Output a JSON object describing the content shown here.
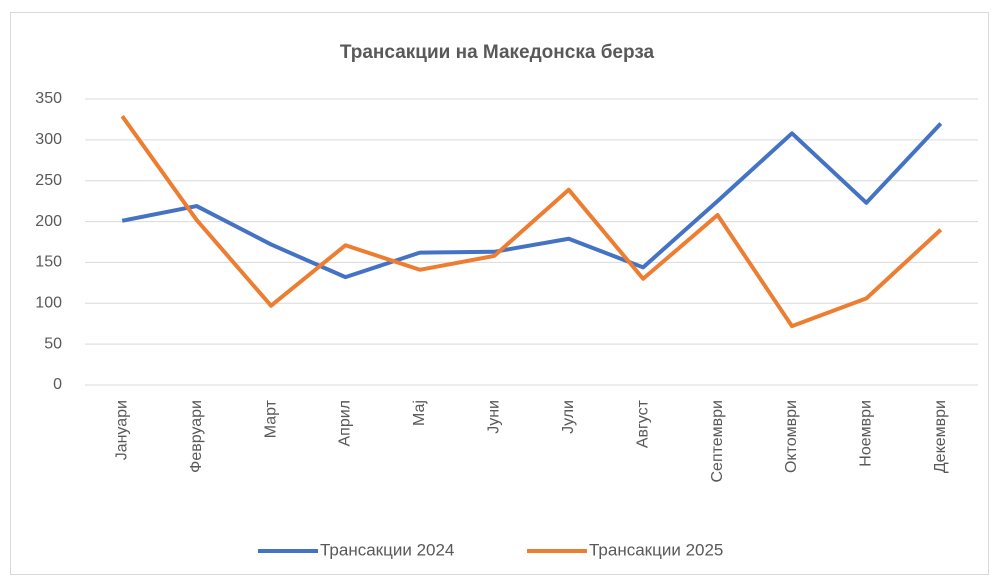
{
  "chart_data": {
    "type": "line",
    "title": "Трансакции на Македонска берза",
    "categories": [
      "Јануари",
      "Февруари",
      "Март",
      "Април",
      "Мај",
      "Јуни",
      "Јули",
      "Август",
      "Септември",
      "Октомври",
      "Ноември",
      "Декември"
    ],
    "series": [
      {
        "name": "Трансакции 2024",
        "color": "#4472c4",
        "values": [
          201,
          219,
          172,
          132,
          162,
          163,
          179,
          144,
          225,
          308,
          223,
          320
        ]
      },
      {
        "name": "Трансакции 2025",
        "color": "#ed7d31",
        "values": [
          329,
          202,
          97,
          171,
          141,
          158,
          239,
          130,
          208,
          72,
          106,
          190
        ]
      }
    ],
    "ylim": [
      0,
      350
    ],
    "yticks": [
      0,
      50,
      100,
      150,
      200,
      250,
      300,
      350
    ],
    "grid": true,
    "legend": "bottom"
  }
}
